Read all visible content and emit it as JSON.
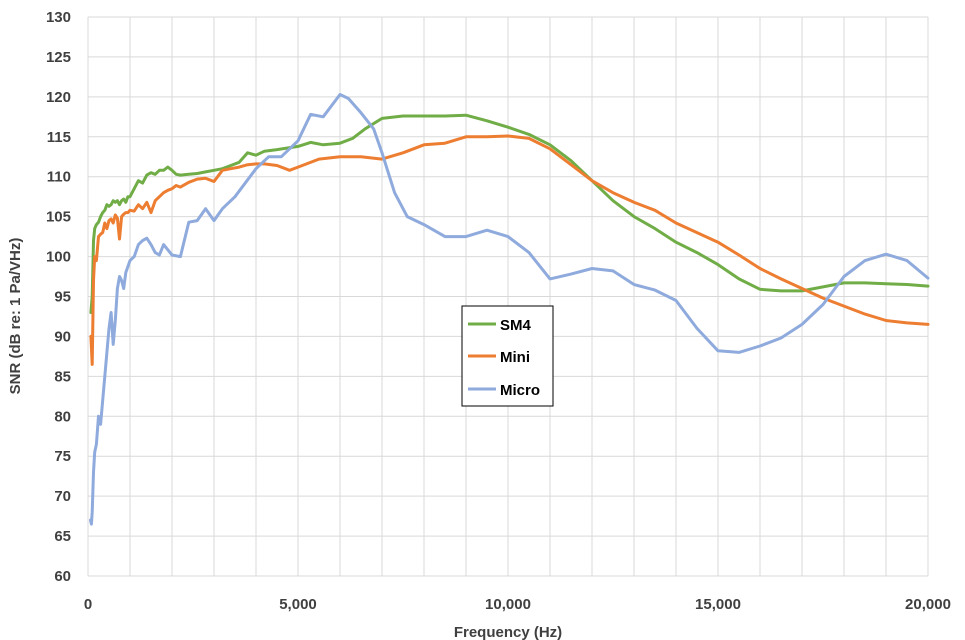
{
  "chart_data": {
    "type": "line",
    "title": "",
    "xlabel": "Frequency (Hz)",
    "ylabel": "SNR (dB re: 1 Pa/VHz)",
    "xlim": [
      0,
      20000
    ],
    "ylim": [
      60,
      130
    ],
    "grid": true,
    "legend_position": "center",
    "x_ticks": [
      0,
      1000,
      2000,
      3000,
      4000,
      5000,
      6000,
      7000,
      8000,
      9000,
      10000,
      11000,
      12000,
      13000,
      14000,
      15000,
      16000,
      17000,
      18000,
      19000,
      20000
    ],
    "x_tick_labels": [
      "0",
      "5,000",
      "10,000",
      "15,000",
      "20,000"
    ],
    "x_label_values": [
      0,
      5000,
      10000,
      15000,
      20000
    ],
    "y_ticks": [
      60,
      65,
      70,
      75,
      80,
      85,
      90,
      95,
      100,
      105,
      110,
      115,
      120,
      125,
      130
    ],
    "y_tick_labels": [
      "60",
      "65",
      "70",
      "75",
      "80",
      "85",
      "90",
      "95",
      "100",
      "105",
      "110",
      "115",
      "120",
      "125",
      "130"
    ],
    "series": [
      {
        "name": "SM4",
        "color": "#70AD47",
        "x": [
          70,
          100,
          130,
          160,
          200,
          250,
          300,
          350,
          400,
          450,
          500,
          550,
          600,
          650,
          700,
          750,
          800,
          850,
          900,
          950,
          1000,
          1100,
          1200,
          1300,
          1400,
          1500,
          1600,
          1700,
          1800,
          1900,
          2000,
          2100,
          2200,
          2400,
          2600,
          2800,
          3000,
          3200,
          3400,
          3600,
          3800,
          4000,
          4200,
          4500,
          5000,
          5300,
          5600,
          6000,
          6300,
          6600,
          7000,
          7500,
          8000,
          8500,
          9000,
          9500,
          10000,
          10500,
          11000,
          11500,
          12000,
          12500,
          13000,
          13500,
          14000,
          14500,
          15000,
          15500,
          16000,
          16500,
          17000,
          17500,
          18000,
          18500,
          19000,
          19500,
          20000
        ],
        "values": [
          93,
          95,
          102,
          103.5,
          104,
          104.3,
          105,
          105.5,
          105.8,
          106.5,
          106.3,
          106.5,
          107,
          106.8,
          107,
          106.5,
          107,
          107.2,
          106.8,
          107.5,
          107.5,
          108.5,
          109.5,
          109.2,
          110.2,
          110.5,
          110.3,
          110.8,
          110.8,
          111.2,
          110.8,
          110.3,
          110.2,
          110.3,
          110.4,
          110.6,
          110.8,
          111,
          111.4,
          111.8,
          113,
          112.7,
          113.2,
          113.4,
          113.8,
          114.3,
          114,
          114.2,
          114.8,
          116,
          117.3,
          117.6,
          117.6,
          117.6,
          117.7,
          117,
          116.2,
          115.3,
          114,
          112,
          109.5,
          107,
          105,
          103.5,
          101.8,
          100.5,
          99,
          97.2,
          95.9,
          95.7,
          95.7,
          96.2,
          96.7,
          96.7,
          96.6,
          96.5,
          96.3
        ]
      },
      {
        "name": "Mini",
        "color": "#ED7D31",
        "x": [
          70,
          100,
          130,
          160,
          200,
          250,
          300,
          350,
          400,
          450,
          500,
          550,
          600,
          650,
          700,
          750,
          800,
          850,
          900,
          950,
          1000,
          1100,
          1200,
          1300,
          1400,
          1500,
          1600,
          1700,
          1800,
          1900,
          2000,
          2100,
          2200,
          2400,
          2600,
          2800,
          3000,
          3200,
          3400,
          3600,
          3800,
          4000,
          4200,
          4500,
          4800,
          5000,
          5500,
          6000,
          6500,
          7000,
          7500,
          8000,
          8500,
          9000,
          9500,
          10000,
          10500,
          11000,
          11500,
          12000,
          12500,
          13000,
          13500,
          14000,
          14500,
          15000,
          15500,
          16000,
          16500,
          17000,
          17500,
          18000,
          18500,
          19000,
          19500,
          20000
        ],
        "values": [
          90,
          86.5,
          97,
          100,
          99.5,
          102.5,
          102.8,
          103,
          104.2,
          103.5,
          104.5,
          104.7,
          104.2,
          105.2,
          104.8,
          102.2,
          105,
          105.3,
          105.5,
          105.5,
          105.8,
          105.7,
          106.5,
          106,
          106.8,
          105.5,
          107,
          107.5,
          108,
          108.3,
          108.5,
          108.9,
          108.7,
          109.3,
          109.7,
          109.8,
          109.4,
          110.8,
          111,
          111.2,
          111.5,
          111.6,
          111.6,
          111.4,
          110.8,
          111.2,
          112.2,
          112.5,
          112.5,
          112.2,
          113,
          114,
          114.2,
          115,
          115,
          115.1,
          114.8,
          113.5,
          111.5,
          109.5,
          108,
          106.8,
          105.8,
          104.2,
          103,
          101.8,
          100.2,
          98.5,
          97.2,
          96,
          94.8,
          93.8,
          92.8,
          92,
          91.7,
          91.5
        ]
      },
      {
        "name": "Micro",
        "color": "#8FAADC",
        "x": [
          60,
          80,
          100,
          130,
          160,
          200,
          250,
          300,
          350,
          400,
          450,
          500,
          550,
          600,
          650,
          700,
          750,
          800,
          850,
          900,
          1000,
          1100,
          1200,
          1300,
          1400,
          1500,
          1600,
          1700,
          1800,
          2000,
          2200,
          2400,
          2600,
          2800,
          3000,
          3200,
          3500,
          4000,
          4300,
          4600,
          5000,
          5300,
          5600,
          6000,
          6200,
          6500,
          6800,
          7000,
          7300,
          7600,
          8000,
          8500,
          9000,
          9500,
          10000,
          10500,
          11000,
          11500,
          12000,
          12500,
          13000,
          13500,
          14000,
          14500,
          15000,
          15500,
          16000,
          16500,
          17000,
          17500,
          18000,
          18500,
          19000,
          19500,
          20000
        ],
        "values": [
          67,
          66.5,
          68,
          73,
          75.5,
          76.5,
          80,
          79,
          82,
          85,
          88,
          91,
          93,
          89,
          92,
          96,
          97.5,
          97,
          96,
          98,
          99.5,
          100,
          101.5,
          102,
          102.3,
          101.5,
          100.5,
          100.2,
          101.5,
          100.2,
          100,
          104.3,
          104.5,
          106,
          104.5,
          106,
          107.5,
          111,
          112.5,
          112.5,
          114.5,
          117.8,
          117.5,
          120.3,
          119.8,
          118,
          116,
          113,
          108,
          105,
          104,
          102.5,
          102.5,
          103.3,
          102.5,
          100.5,
          97.2,
          97.8,
          98.5,
          98.2,
          96.5,
          95.8,
          94.5,
          91,
          88.2,
          88,
          88.8,
          89.8,
          91.5,
          94,
          97.5,
          99.5,
          100.3,
          99.5,
          97.3
        ]
      }
    ]
  }
}
